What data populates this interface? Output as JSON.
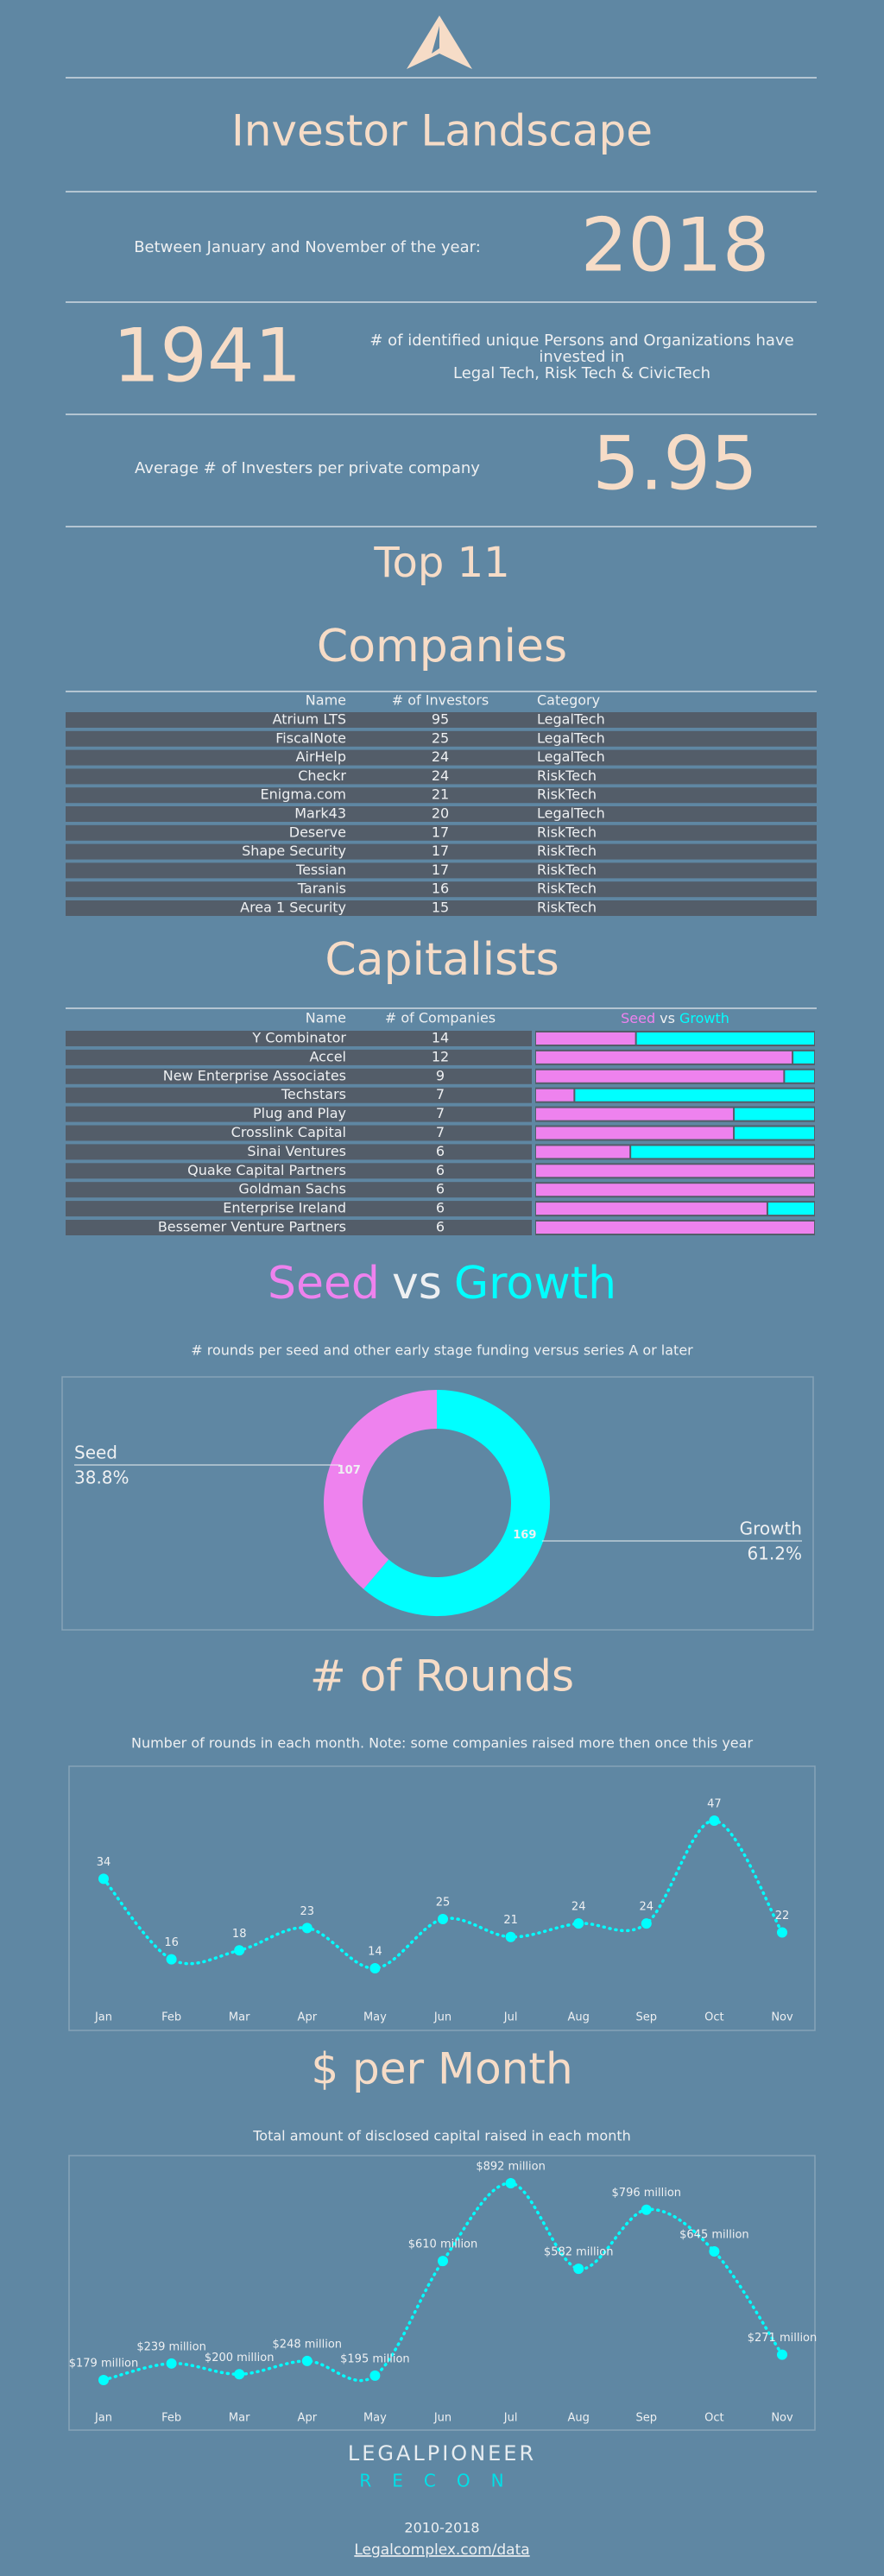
{
  "header": {
    "title": "Investor Landscape"
  },
  "stats": [
    {
      "label_lines": [
        "Between January and November of the year:"
      ],
      "value": 2018
    },
    {
      "label_lines": [
        "# of identified unique Persons and Organizations have",
        "invested in",
        "Legal Tech, Risk Tech & CivicTech"
      ],
      "value": 1941
    },
    {
      "label_lines": [
        "Average # of Investers per private company"
      ],
      "value": 5.95
    }
  ],
  "top_title": "Top 11",
  "companies": {
    "title": "Companies",
    "columns": [
      "Name",
      "# of Investors",
      "Category"
    ],
    "rows": [
      [
        "Atrium LTS",
        95,
        "LegalTech"
      ],
      [
        "FiscalNote",
        25,
        "LegalTech"
      ],
      [
        "AirHelp",
        24,
        "LegalTech"
      ],
      [
        "Checkr",
        24,
        "RiskTech"
      ],
      [
        "Enigma.com",
        21,
        "RiskTech"
      ],
      [
        "Mark43",
        20,
        "LegalTech"
      ],
      [
        "Deserve",
        17,
        "RiskTech"
      ],
      [
        "Shape Security",
        17,
        "RiskTech"
      ],
      [
        "Tessian",
        17,
        "RiskTech"
      ],
      [
        "Taranis",
        16,
        "RiskTech"
      ],
      [
        "Area 1 Security",
        15,
        "RiskTech"
      ]
    ]
  },
  "capitalists": {
    "title": "Capitalists",
    "columns": [
      "Name",
      "# of Companies"
    ],
    "names": [
      "Y Combinator",
      "Accel",
      "New Enterprise Associates",
      "Techstars",
      "Plug and Play",
      "Crosslink Capital",
      "Sinai Ventures",
      "Quake Capital Partners",
      "Goldman Sachs",
      "Enterprise Ireland",
      "Bessemer Venture Partners"
    ],
    "companies": [
      14,
      12,
      9,
      7,
      7,
      7,
      6,
      6,
      6,
      6,
      6
    ],
    "joiner": "vs",
    "xlim": [
      0,
      100
    ],
    "series": [
      {
        "name": "Seed",
        "color": "#ee82ee",
        "values": [
          36,
          92,
          89,
          14,
          71,
          71,
          34,
          100,
          100,
          83,
          100
        ]
      },
      {
        "name": "Growth",
        "color": "#00ffff",
        "values": [
          64,
          8,
          11,
          86,
          29,
          29,
          66,
          0,
          0,
          17,
          0
        ]
      }
    ]
  },
  "chart_data": [
    {
      "type": "pie",
      "title_words": [
        "Seed",
        "vs",
        "Growth"
      ],
      "subtitle": "# rounds per seed and other early stage funding versus series A or later",
      "categories": [
        "Seed",
        "Growth"
      ],
      "values": [
        107,
        169
      ],
      "colors": [
        "#ee82ee",
        "#00ffff"
      ],
      "percentages": [
        {
          "value": 38.8,
          "label": "38.8%"
        },
        {
          "value": 61.2,
          "label": "61.2%"
        }
      ]
    },
    {
      "type": "line",
      "title": "# of Rounds",
      "subtitle": "Number of rounds in each month. Note: some companies raised more then once this year",
      "categories": [
        "Jan",
        "Feb",
        "Mar",
        "Apr",
        "May",
        "Jun",
        "Jul",
        "Aug",
        "Sep",
        "Oct",
        "Nov"
      ],
      "values": [
        34,
        16,
        18,
        23,
        14,
        25,
        21,
        24,
        24,
        47,
        22
      ],
      "color": "#00ffff"
    },
    {
      "type": "line",
      "title": "$ per Month",
      "subtitle": "Total amount of disclosed capital raised in each month",
      "categories": [
        "Jan",
        "Feb",
        "Mar",
        "Apr",
        "May",
        "Jun",
        "Jul",
        "Aug",
        "Sep",
        "Oct",
        "Nov"
      ],
      "values": [
        179,
        239,
        200,
        248,
        195,
        610,
        892,
        582,
        796,
        645,
        271
      ],
      "value_labels": [
        "$179 million",
        "$239 million",
        "$200 million",
        "$248 million",
        "$195 million",
        "$610 million",
        "$892 million",
        "$582 million",
        "$796 million",
        "$645 million",
        "$271 million"
      ],
      "color": "#00ffff"
    }
  ],
  "footer": {
    "brand": "LEGALPIONEER",
    "sub": "RECON",
    "years": "2010-2018",
    "link": "Legalcomplex.com/data"
  }
}
